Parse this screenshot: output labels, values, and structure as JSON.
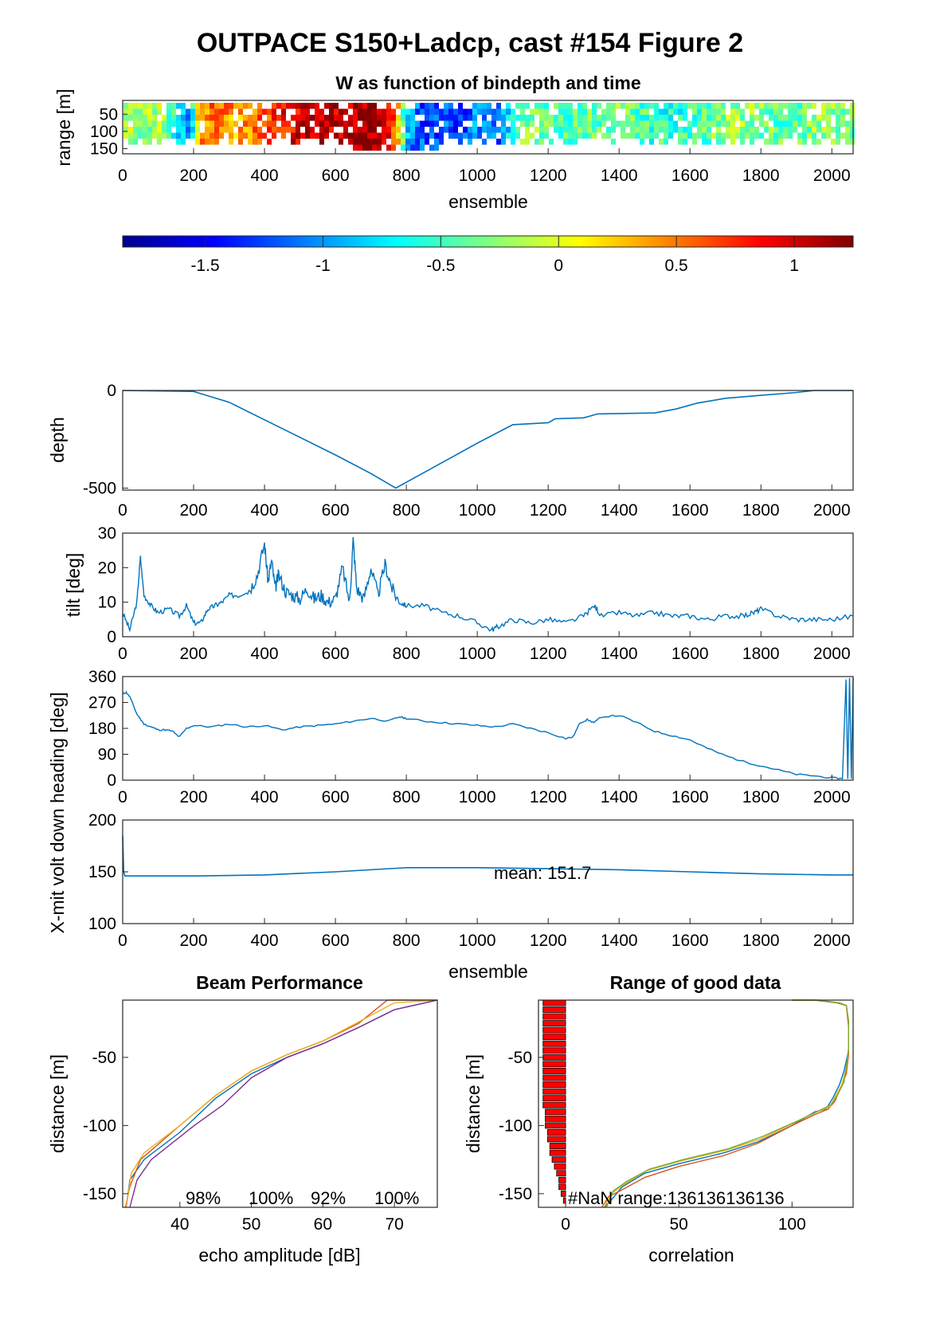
{
  "figure": {
    "title": "OUTPACE S150+Ladcp, cast #154 Figure 2"
  },
  "chart_data": [
    {
      "type": "heatmap",
      "title": "W as function of bindepth and time",
      "xlabel": "ensemble",
      "ylabel": "range [m]",
      "xlim": [
        0,
        2060
      ],
      "ylim": [
        165,
        10
      ],
      "xticks": [
        "0",
        "200",
        "400",
        "600",
        "800",
        "1000",
        "1200",
        "1400",
        "1600",
        "1800",
        "2000"
      ],
      "yticks": [
        "50",
        "100",
        "150"
      ],
      "clim": [
        -1.85,
        1.25
      ],
      "colorbar_ticks": [
        "-1.5",
        "-1",
        "-0.5",
        "0",
        "0.5",
        "1"
      ],
      "w_by_ensemble": [
        {
          "x": 0,
          "w": -0.1
        },
        {
          "x": 60,
          "w": -0.3
        },
        {
          "x": 100,
          "w": 0.0
        },
        {
          "x": 140,
          "w": -0.6
        },
        {
          "x": 180,
          "w": -1.2
        },
        {
          "x": 210,
          "w": 0.4
        },
        {
          "x": 260,
          "w": 0.6
        },
        {
          "x": 320,
          "w": 0.3
        },
        {
          "x": 380,
          "w": 0.6
        },
        {
          "x": 440,
          "w": 0.8
        },
        {
          "x": 500,
          "w": 1.0
        },
        {
          "x": 560,
          "w": 1.1
        },
        {
          "x": 620,
          "w": 1.0
        },
        {
          "x": 660,
          "w": 1.15
        },
        {
          "x": 720,
          "w": 1.2
        },
        {
          "x": 760,
          "w": 0.6
        },
        {
          "x": 800,
          "w": -1.0
        },
        {
          "x": 860,
          "w": -1.3
        },
        {
          "x": 900,
          "w": -1.1
        },
        {
          "x": 940,
          "w": -1.4
        },
        {
          "x": 1000,
          "w": -1.0
        },
        {
          "x": 1060,
          "w": -1.2
        },
        {
          "x": 1100,
          "w": -0.4
        },
        {
          "x": 1160,
          "w": -0.3
        },
        {
          "x": 1220,
          "w": -0.5
        },
        {
          "x": 1300,
          "w": -0.4
        },
        {
          "x": 1400,
          "w": -0.3
        },
        {
          "x": 1480,
          "w": -0.5
        },
        {
          "x": 1560,
          "w": -0.6
        },
        {
          "x": 1640,
          "w": -0.4
        },
        {
          "x": 1720,
          "w": -0.2
        },
        {
          "x": 1800,
          "w": -0.3
        },
        {
          "x": 1880,
          "w": -0.5
        },
        {
          "x": 1960,
          "w": -0.2
        },
        {
          "x": 2040,
          "w": -0.4
        }
      ]
    },
    {
      "type": "line",
      "ylabel": "depth",
      "xlim": [
        0,
        2060
      ],
      "ylim": [
        -510,
        0
      ],
      "xticks": [
        "0",
        "200",
        "400",
        "600",
        "800",
        "1000",
        "1200",
        "1400",
        "1600",
        "1800",
        "2000"
      ],
      "yticks": [
        "0",
        "-500"
      ],
      "series": [
        {
          "x": [
            0,
            200,
            300,
            400,
            500,
            600,
            700,
            770,
            800,
            900,
            1000,
            1100,
            1200,
            1220,
            1300,
            1340,
            1500,
            1560,
            1620,
            1700,
            1800,
            1900,
            1950,
            2060
          ],
          "y": [
            0,
            -5,
            -60,
            -150,
            -240,
            -330,
            -425,
            -500,
            -470,
            -370,
            -270,
            -175,
            -165,
            -145,
            -140,
            -120,
            -115,
            -95,
            -65,
            -40,
            -25,
            -10,
            0,
            0
          ]
        }
      ]
    },
    {
      "type": "line",
      "ylabel": "tilt [deg]",
      "xlim": [
        0,
        2060
      ],
      "ylim": [
        0,
        30
      ],
      "xticks": [
        "0",
        "200",
        "400",
        "600",
        "800",
        "1000",
        "1200",
        "1400",
        "1600",
        "1800",
        "2000"
      ],
      "yticks": [
        "0",
        "10",
        "20",
        "30"
      ],
      "series": [
        {
          "x": [
            0,
            20,
            40,
            50,
            60,
            80,
            100,
            130,
            160,
            180,
            200,
            220,
            240,
            260,
            280,
            300,
            330,
            360,
            380,
            400,
            410,
            420,
            430,
            440,
            460,
            480,
            500,
            520,
            540,
            560,
            580,
            600,
            620,
            640,
            650,
            660,
            680,
            700,
            720,
            740,
            760,
            780,
            800,
            850,
            900,
            950,
            1000,
            1040,
            1060,
            1100,
            1150,
            1200,
            1250,
            1300,
            1330,
            1350,
            1400,
            1450,
            1500,
            1550,
            1600,
            1650,
            1700,
            1750,
            1780,
            1800,
            1850,
            1900,
            1950,
            2000,
            2060
          ],
          "y": [
            7,
            2,
            10,
            23,
            12,
            9,
            7,
            8,
            6,
            9,
            4,
            4,
            8,
            9,
            10,
            12,
            12,
            14,
            18,
            27,
            16,
            22,
            14,
            18,
            13,
            12,
            11,
            14,
            11,
            12,
            10,
            11,
            20,
            10,
            28,
            14,
            11,
            20,
            12,
            21,
            14,
            10,
            9,
            9,
            7,
            6,
            4,
            2,
            3,
            5,
            4,
            5,
            4,
            6,
            9,
            6,
            7,
            6,
            7,
            6,
            6,
            5,
            6,
            6,
            7,
            8,
            6,
            5,
            5,
            5,
            6
          ]
        }
      ]
    },
    {
      "type": "line",
      "ylabel": "heading [deg]",
      "xlim": [
        0,
        2060
      ],
      "ylim": [
        0,
        360
      ],
      "xticks": [
        "0",
        "200",
        "400",
        "600",
        "800",
        "1000",
        "1200",
        "1400",
        "1600",
        "1800",
        "2000"
      ],
      "yticks": [
        "0",
        "90",
        "180",
        "270",
        "360"
      ],
      "series": [
        {
          "x": [
            0,
            10,
            20,
            40,
            60,
            80,
            100,
            120,
            140,
            160,
            180,
            200,
            250,
            300,
            350,
            400,
            450,
            500,
            550,
            600,
            650,
            700,
            750,
            780,
            800,
            850,
            900,
            950,
            1000,
            1050,
            1100,
            1150,
            1200,
            1250,
            1270,
            1290,
            1310,
            1330,
            1350,
            1400,
            1450,
            1500,
            1550,
            1600,
            1650,
            1700,
            1750,
            1800,
            1850,
            1900,
            1950,
            2000,
            2030,
            2040,
            2045,
            2050,
            2055,
            2060
          ],
          "y": [
            300,
            305,
            290,
            230,
            195,
            185,
            175,
            175,
            170,
            150,
            180,
            190,
            185,
            195,
            185,
            190,
            175,
            185,
            190,
            195,
            205,
            215,
            205,
            220,
            215,
            205,
            200,
            195,
            190,
            185,
            195,
            180,
            165,
            145,
            150,
            200,
            210,
            200,
            220,
            225,
            200,
            170,
            155,
            140,
            110,
            85,
            65,
            50,
            35,
            20,
            15,
            8,
            5,
            350,
            5,
            355,
            5,
            355
          ]
        }
      ]
    },
    {
      "type": "line",
      "ylabel": "X-mit volt",
      "xlabel": "ensemble",
      "annotation": "mean: 151.7",
      "xlim": [
        0,
        2060
      ],
      "ylim": [
        100,
        200
      ],
      "xticks": [
        "0",
        "200",
        "400",
        "600",
        "800",
        "1000",
        "1200",
        "1400",
        "1600",
        "1800",
        "2000"
      ],
      "yticks": [
        "100",
        "150",
        "200"
      ],
      "series": [
        {
          "x": [
            0,
            3,
            6,
            10,
            50,
            200,
            400,
            600,
            800,
            1000,
            1200,
            1400,
            1600,
            1800,
            2000,
            2060
          ],
          "y": [
            185,
            150,
            146,
            146,
            146,
            146,
            147,
            150,
            154,
            154,
            153,
            152,
            150,
            148,
            147,
            147
          ]
        }
      ]
    },
    {
      "type": "line",
      "title": "Beam Performance",
      "xlabel": "echo amplitude [dB]",
      "ylabel": "distance [m]",
      "xlim": [
        32,
        76
      ],
      "ylim": [
        -160,
        -8
      ],
      "xticks": [
        "40",
        "50",
        "60",
        "70"
      ],
      "yticks": [
        "-50",
        "-100",
        "-150"
      ],
      "beam_percent": [
        "98%",
        "100%",
        "92%",
        "100%"
      ],
      "series": [
        {
          "x": [
            32.5,
            33,
            35,
            40,
            45,
            50,
            55,
            60,
            65,
            70,
            76
          ],
          "y": [
            -160,
            -140,
            -125,
            -105,
            -80,
            -62,
            -50,
            -40,
            -28,
            -15,
            -8
          ],
          "color": "#0072BD"
        },
        {
          "x": [
            32.4,
            33,
            34.5,
            40,
            45,
            50,
            55,
            60,
            65,
            69,
            76
          ],
          "y": [
            -160,
            -145,
            -125,
            -100,
            -78,
            -60,
            -48,
            -38,
            -25,
            -8,
            -8
          ],
          "color": "#D95319"
        },
        {
          "x": [
            32.5,
            33.2,
            35,
            40,
            45,
            50,
            55,
            60,
            65,
            70,
            76
          ],
          "y": [
            -160,
            -135,
            -120,
            -100,
            -78,
            -60,
            -48,
            -38,
            -24,
            -10,
            -8
          ],
          "color": "#EDB120"
        },
        {
          "x": [
            33,
            34,
            36,
            42,
            46,
            50,
            55,
            60,
            65,
            70,
            76
          ],
          "y": [
            -160,
            -140,
            -125,
            -100,
            -85,
            -65,
            -50,
            -40,
            -28,
            -15,
            -8
          ],
          "color": "#7E2F8E"
        }
      ]
    },
    {
      "type": "line",
      "title": "Range of good data",
      "xlabel": "correlation",
      "ylabel": "distance [m]",
      "xlim": [
        -12,
        127
      ],
      "ylim": [
        -160,
        -8
      ],
      "xticks": [
        "0",
        "50",
        "100"
      ],
      "yticks": [
        "-50",
        "-100",
        "-150"
      ],
      "annotation": "#NaN range:136136136136",
      "nan_counts": [
        {
          "d": -10,
          "n": 10
        },
        {
          "d": -15,
          "n": 10
        },
        {
          "d": -20,
          "n": 10
        },
        {
          "d": -25,
          "n": 10
        },
        {
          "d": -30,
          "n": 10
        },
        {
          "d": -35,
          "n": 10
        },
        {
          "d": -40,
          "n": 10
        },
        {
          "d": -45,
          "n": 10
        },
        {
          "d": -50,
          "n": 10
        },
        {
          "d": -55,
          "n": 10
        },
        {
          "d": -60,
          "n": 10
        },
        {
          "d": -65,
          "n": 10
        },
        {
          "d": -70,
          "n": 10
        },
        {
          "d": -75,
          "n": 10
        },
        {
          "d": -80,
          "n": 10
        },
        {
          "d": -85,
          "n": 10
        },
        {
          "d": -90,
          "n": 9
        },
        {
          "d": -95,
          "n": 9
        },
        {
          "d": -100,
          "n": 9
        },
        {
          "d": -105,
          "n": 8
        },
        {
          "d": -110,
          "n": 8
        },
        {
          "d": -115,
          "n": 7
        },
        {
          "d": -120,
          "n": 7
        },
        {
          "d": -125,
          "n": 6
        },
        {
          "d": -130,
          "n": 5
        },
        {
          "d": -135,
          "n": 4
        },
        {
          "d": -140,
          "n": 3
        },
        {
          "d": -145,
          "n": 3
        },
        {
          "d": -150,
          "n": 2
        },
        {
          "d": -155,
          "n": 1
        }
      ],
      "series": [
        {
          "x": [
            17,
            20,
            25,
            35,
            50,
            70,
            85,
            100,
            110,
            115,
            118,
            121,
            123,
            125,
            125,
            124,
            120,
            110,
            100
          ],
          "y": [
            -160,
            -155,
            -145,
            -135,
            -128,
            -120,
            -112,
            -100,
            -90,
            -88,
            -80,
            -70,
            -60,
            -45,
            -25,
            -12,
            -10,
            -8,
            -8
          ],
          "color": "#0072BD"
        },
        {
          "x": [
            16,
            19,
            24,
            35,
            50,
            70,
            85,
            100,
            110,
            116,
            119,
            122,
            124,
            125,
            125,
            124,
            120,
            110,
            100
          ],
          "y": [
            -160,
            -152,
            -148,
            -138,
            -130,
            -122,
            -113,
            -100,
            -92,
            -88,
            -82,
            -70,
            -62,
            -48,
            -28,
            -12,
            -10,
            -8,
            -8
          ],
          "color": "#D95319"
        },
        {
          "x": [
            17,
            20,
            26,
            36,
            51,
            71,
            86,
            101,
            111,
            117,
            119,
            122,
            124,
            125,
            125,
            124,
            121,
            112,
            102
          ],
          "y": [
            -160,
            -150,
            -143,
            -133,
            -126,
            -118,
            -110,
            -98,
            -90,
            -86,
            -79,
            -70,
            -58,
            -44,
            -24,
            -12,
            -10,
            -8,
            -8
          ],
          "color": "#EDB120"
        },
        {
          "x": [
            18,
            21,
            27,
            37,
            52,
            72,
            87,
            102,
            112,
            117,
            120,
            123,
            124,
            125,
            125,
            124,
            121,
            111,
            101
          ],
          "y": [
            -160,
            -148,
            -141,
            -132,
            -125,
            -117,
            -108,
            -97,
            -89,
            -85,
            -78,
            -68,
            -57,
            -43,
            -23,
            -12,
            -10,
            -8,
            -8
          ],
          "color": "#77AC30"
        }
      ]
    }
  ]
}
